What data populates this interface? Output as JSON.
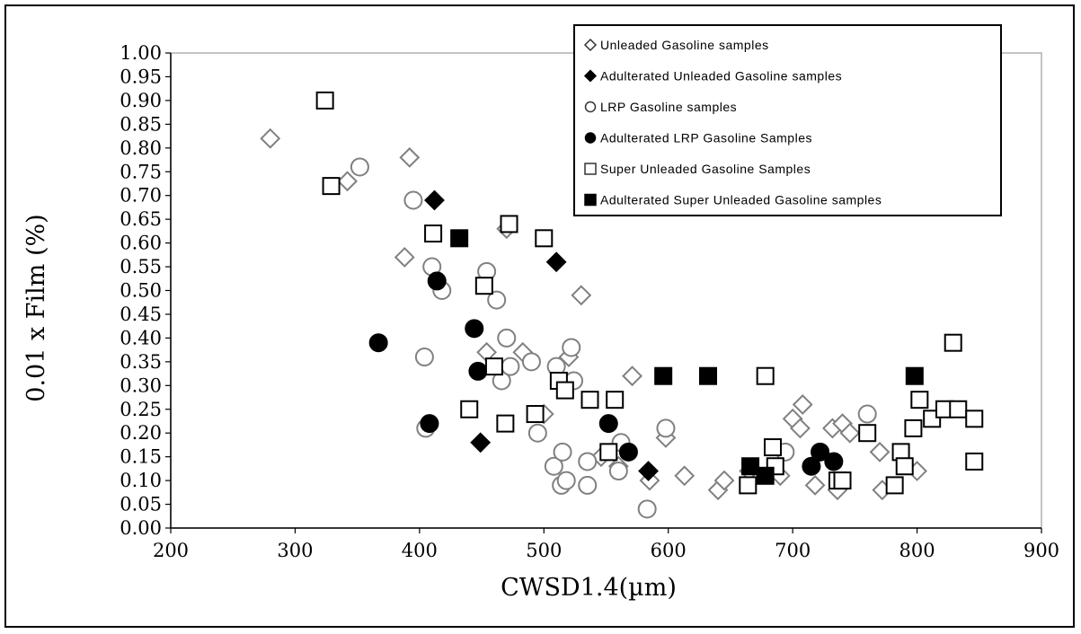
{
  "chart_data": {
    "type": "scatter",
    "title": "",
    "xlabel": "CWSD1.4(µm)",
    "ylabel": "0.01 x Film (%)",
    "xlim": [
      200,
      900
    ],
    "ylim": [
      0,
      1
    ],
    "x_ticks": [
      "200",
      "300",
      "400",
      "500",
      "600",
      "700",
      "800",
      "900"
    ],
    "y_ticks": [
      "0.00",
      "0.05",
      "0.10",
      "0.15",
      "0.20",
      "0.25",
      "0.30",
      "0.35",
      "0.40",
      "0.45",
      "0.50",
      "0.55",
      "0.60",
      "0.65",
      "0.70",
      "0.75",
      "0.80",
      "0.85",
      "0.90",
      "0.95",
      "1.00"
    ],
    "grid": false,
    "legend_position": "top-right",
    "series": [
      {
        "name": "Unleaded Gasoline samples",
        "marker": "diamond-open",
        "color": "#808080",
        "points": [
          [
            280,
            0.82
          ],
          [
            342,
            0.73
          ],
          [
            388,
            0.57
          ],
          [
            392,
            0.78
          ],
          [
            454,
            0.37
          ],
          [
            470,
            0.63
          ],
          [
            483,
            0.37
          ],
          [
            500,
            0.24
          ],
          [
            520,
            0.36
          ],
          [
            530,
            0.49
          ],
          [
            546,
            0.15
          ],
          [
            560,
            0.13
          ],
          [
            571,
            0.32
          ],
          [
            585,
            0.1
          ],
          [
            598,
            0.19
          ],
          [
            613,
            0.11
          ],
          [
            640,
            0.08
          ],
          [
            645,
            0.1
          ],
          [
            665,
            0.12
          ],
          [
            690,
            0.11
          ],
          [
            700,
            0.23
          ],
          [
            706,
            0.21
          ],
          [
            708,
            0.26
          ],
          [
            718,
            0.09
          ],
          [
            732,
            0.21
          ],
          [
            736,
            0.08
          ],
          [
            740,
            0.22
          ],
          [
            746,
            0.2
          ],
          [
            770,
            0.16
          ],
          [
            772,
            0.08
          ],
          [
            800,
            0.12
          ]
        ]
      },
      {
        "name": "Adulterated Unleaded Gasoline samples",
        "marker": "diamond-filled",
        "color": "#000000",
        "points": [
          [
            412,
            0.69
          ],
          [
            449,
            0.18
          ],
          [
            510,
            0.56
          ],
          [
            584,
            0.12
          ]
        ]
      },
      {
        "name": "LRP Gasoline samples",
        "marker": "circle-open",
        "color": "#808080",
        "points": [
          [
            352,
            0.76
          ],
          [
            395,
            0.69
          ],
          [
            404,
            0.36
          ],
          [
            405,
            0.21
          ],
          [
            410,
            0.55
          ],
          [
            418,
            0.5
          ],
          [
            454,
            0.54
          ],
          [
            462,
            0.48
          ],
          [
            466,
            0.31
          ],
          [
            470,
            0.4
          ],
          [
            473,
            0.34
          ],
          [
            490,
            0.35
          ],
          [
            495,
            0.2
          ],
          [
            508,
            0.13
          ],
          [
            510,
            0.34
          ],
          [
            514,
            0.09
          ],
          [
            515,
            0.16
          ],
          [
            518,
            0.1
          ],
          [
            522,
            0.38
          ],
          [
            524,
            0.31
          ],
          [
            535,
            0.09
          ],
          [
            535,
            0.14
          ],
          [
            560,
            0.12
          ],
          [
            562,
            0.18
          ],
          [
            583,
            0.04
          ],
          [
            598,
            0.21
          ],
          [
            694,
            0.16
          ],
          [
            760,
            0.24
          ]
        ]
      },
      {
        "name": "Adulterated LRP Gasoline Samples",
        "marker": "circle-filled",
        "color": "#000000",
        "points": [
          [
            367,
            0.39
          ],
          [
            408,
            0.22
          ],
          [
            414,
            0.52
          ],
          [
            444,
            0.42
          ],
          [
            447,
            0.33
          ],
          [
            552,
            0.22
          ],
          [
            568,
            0.16
          ],
          [
            715,
            0.13
          ],
          [
            722,
            0.16
          ],
          [
            733,
            0.14
          ]
        ]
      },
      {
        "name": "Super Unleaded Gasoline Samples",
        "marker": "square-open",
        "color": "#000000",
        "points": [
          [
            324,
            0.9
          ],
          [
            329,
            0.72
          ],
          [
            411,
            0.62
          ],
          [
            440,
            0.25
          ],
          [
            452,
            0.51
          ],
          [
            460,
            0.34
          ],
          [
            469,
            0.22
          ],
          [
            472,
            0.64
          ],
          [
            493,
            0.24
          ],
          [
            500,
            0.61
          ],
          [
            512,
            0.31
          ],
          [
            517,
            0.29
          ],
          [
            537,
            0.27
          ],
          [
            552,
            0.16
          ],
          [
            557,
            0.27
          ],
          [
            664,
            0.09
          ],
          [
            678,
            0.32
          ],
          [
            684,
            0.17
          ],
          [
            686,
            0.13
          ],
          [
            736,
            0.1
          ],
          [
            740,
            0.1
          ],
          [
            760,
            0.2
          ],
          [
            782,
            0.09
          ],
          [
            787,
            0.16
          ],
          [
            790,
            0.13
          ],
          [
            797,
            0.21
          ],
          [
            802,
            0.27
          ],
          [
            812,
            0.23
          ],
          [
            822,
            0.25
          ],
          [
            829,
            0.39
          ],
          [
            833,
            0.25
          ],
          [
            846,
            0.23
          ],
          [
            846,
            0.14
          ]
        ]
      },
      {
        "name": "Adulterated Super Unleaded Gasoline samples",
        "marker": "square-filled",
        "color": "#000000",
        "points": [
          [
            432,
            0.61
          ],
          [
            596,
            0.32
          ],
          [
            632,
            0.32
          ],
          [
            666,
            0.13
          ],
          [
            678,
            0.11
          ],
          [
            798,
            0.32
          ]
        ]
      }
    ]
  }
}
